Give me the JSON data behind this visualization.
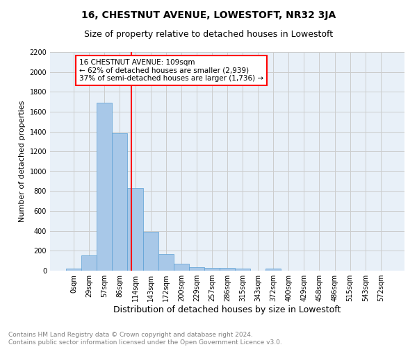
{
  "title": "16, CHESTNUT AVENUE, LOWESTOFT, NR32 3JA",
  "subtitle": "Size of property relative to detached houses in Lowestoft",
  "xlabel": "Distribution of detached houses by size in Lowestoft",
  "ylabel": "Number of detached properties",
  "bin_labels": [
    "0sqm",
    "29sqm",
    "57sqm",
    "86sqm",
    "114sqm",
    "143sqm",
    "172sqm",
    "200sqm",
    "229sqm",
    "257sqm",
    "286sqm",
    "315sqm",
    "343sqm",
    "372sqm",
    "400sqm",
    "429sqm",
    "458sqm",
    "486sqm",
    "515sqm",
    "543sqm",
    "572sqm"
  ],
  "bin_values": [
    20,
    155,
    1690,
    1380,
    830,
    390,
    165,
    70,
    35,
    30,
    30,
    20,
    0,
    20,
    0,
    0,
    0,
    0,
    0,
    0,
    0
  ],
  "bar_color": "#a8c8e8",
  "bar_edge_color": "#5a9fd4",
  "red_line_x": 3.75,
  "annotation_text": "16 CHESTNUT AVENUE: 109sqm\n← 62% of detached houses are smaller (2,939)\n37% of semi-detached houses are larger (1,736) →",
  "annotation_box_color": "white",
  "annotation_box_edge_color": "red",
  "ylim": [
    0,
    2200
  ],
  "yticks": [
    0,
    200,
    400,
    600,
    800,
    1000,
    1200,
    1400,
    1600,
    1800,
    2000,
    2200
  ],
  "grid_color": "#cccccc",
  "bg_color": "#e8f0f8",
  "footnote": "Contains HM Land Registry data © Crown copyright and database right 2024.\nContains public sector information licensed under the Open Government Licence v3.0.",
  "title_fontsize": 10,
  "subtitle_fontsize": 9,
  "xlabel_fontsize": 9,
  "ylabel_fontsize": 8,
  "tick_fontsize": 7,
  "annotation_fontsize": 7.5,
  "footnote_fontsize": 6.5
}
